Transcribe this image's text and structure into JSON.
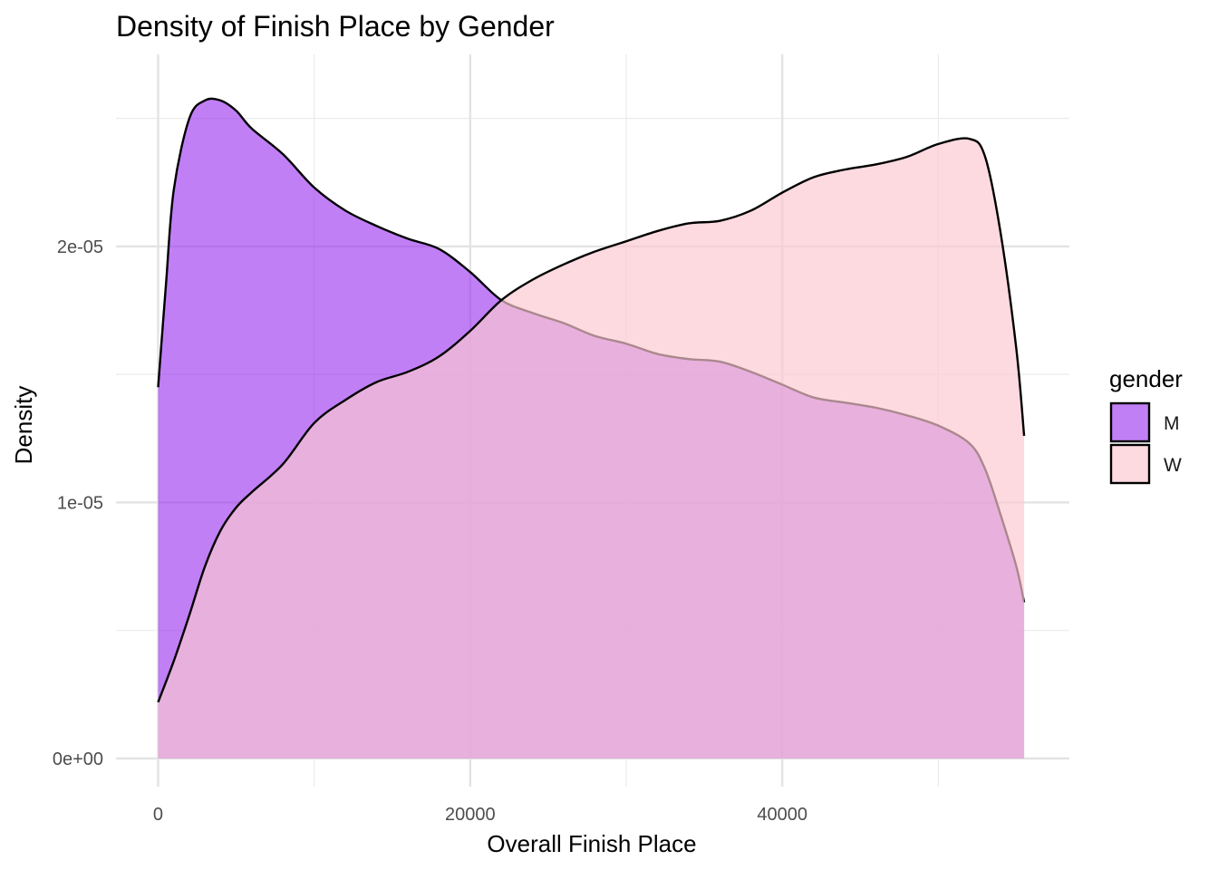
{
  "chart_data": {
    "type": "area",
    "title": "Density of Finish Place by Gender",
    "xlabel": "Overall Finish Place",
    "ylabel": "Density",
    "xlim": [
      -2700,
      58400
    ],
    "ylim": [
      -1.1e-06,
      2.75e-05
    ],
    "x_ticks": [
      0,
      20000,
      40000
    ],
    "x_tick_labels": [
      "0",
      "20000",
      "40000"
    ],
    "x_minor_ticks": [
      10000,
      30000,
      50000
    ],
    "y_ticks": [
      0,
      1e-05,
      2e-05
    ],
    "y_tick_labels": [
      "0e+00",
      "1e-05",
      "2e-05"
    ],
    "y_minor_ticks": [
      5e-06,
      1.5e-05,
      2.5e-05
    ],
    "grid": true,
    "legend": {
      "title": "gender",
      "position": "right"
    },
    "series": [
      {
        "name": "M",
        "color": "#9b30f0",
        "opacity": 0.62,
        "points": [
          [
            0,
            1.45e-05
          ],
          [
            500,
            1.85e-05
          ],
          [
            1000,
            2.22e-05
          ],
          [
            2000,
            2.5e-05
          ],
          [
            3000,
            2.57e-05
          ],
          [
            4000,
            2.57e-05
          ],
          [
            5000,
            2.53e-05
          ],
          [
            6000,
            2.46e-05
          ],
          [
            8000,
            2.36e-05
          ],
          [
            10000,
            2.23e-05
          ],
          [
            12000,
            2.14e-05
          ],
          [
            14000,
            2.08e-05
          ],
          [
            16000,
            2.03e-05
          ],
          [
            18000,
            1.99e-05
          ],
          [
            20000,
            1.9e-05
          ],
          [
            22000,
            1.79e-05
          ],
          [
            24000,
            1.74e-05
          ],
          [
            26000,
            1.7e-05
          ],
          [
            28000,
            1.65e-05
          ],
          [
            30000,
            1.62e-05
          ],
          [
            32000,
            1.58e-05
          ],
          [
            34000,
            1.56e-05
          ],
          [
            36000,
            1.55e-05
          ],
          [
            38000,
            1.51e-05
          ],
          [
            40000,
            1.46e-05
          ],
          [
            42000,
            1.41e-05
          ],
          [
            44000,
            1.39e-05
          ],
          [
            46000,
            1.37e-05
          ],
          [
            48000,
            1.34e-05
          ],
          [
            50000,
            1.3e-05
          ],
          [
            52000,
            1.23e-05
          ],
          [
            53000,
            1.13e-05
          ],
          [
            54000,
            9.5e-06
          ],
          [
            55000,
            7.5e-06
          ],
          [
            55500,
            6.1e-06
          ]
        ]
      },
      {
        "name": "W",
        "color": "#fbc8d2",
        "opacity": 0.68,
        "points": [
          [
            0,
            2.2e-06
          ],
          [
            1000,
            3.8e-06
          ],
          [
            2000,
            5.6e-06
          ],
          [
            3000,
            7.5e-06
          ],
          [
            4000,
            8.9e-06
          ],
          [
            5000,
            9.8e-06
          ],
          [
            6000,
            1.04e-05
          ],
          [
            8000,
            1.15e-05
          ],
          [
            10000,
            1.31e-05
          ],
          [
            12000,
            1.4e-05
          ],
          [
            14000,
            1.47e-05
          ],
          [
            16000,
            1.51e-05
          ],
          [
            18000,
            1.57e-05
          ],
          [
            20000,
            1.67e-05
          ],
          [
            22000,
            1.79e-05
          ],
          [
            24000,
            1.87e-05
          ],
          [
            26000,
            1.93e-05
          ],
          [
            28000,
            1.98e-05
          ],
          [
            30000,
            2.02e-05
          ],
          [
            32000,
            2.06e-05
          ],
          [
            34000,
            2.09e-05
          ],
          [
            36000,
            2.1e-05
          ],
          [
            38000,
            2.14e-05
          ],
          [
            40000,
            2.21e-05
          ],
          [
            42000,
            2.27e-05
          ],
          [
            44000,
            2.3e-05
          ],
          [
            46000,
            2.32e-05
          ],
          [
            48000,
            2.35e-05
          ],
          [
            50000,
            2.4e-05
          ],
          [
            52000,
            2.42e-05
          ],
          [
            53000,
            2.35e-05
          ],
          [
            54000,
            2.05e-05
          ],
          [
            55000,
            1.6e-05
          ],
          [
            55500,
            1.26e-05
          ]
        ]
      }
    ]
  }
}
